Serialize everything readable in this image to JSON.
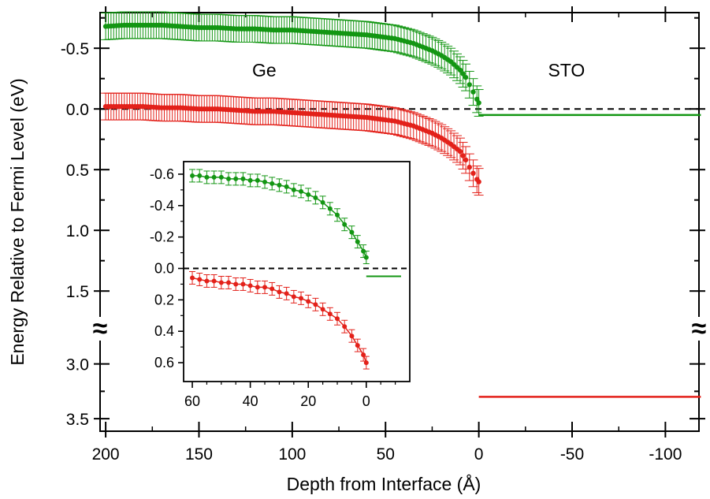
{
  "chart_data": [
    {
      "id": "main",
      "type": "scatter",
      "xlabel": "Depth from Interface (Å)",
      "ylabel": "Energy Relative to Fermi Level (eV)",
      "xlim": [
        -118,
        203
      ],
      "x_reversed": true,
      "x_ticks": [
        200,
        150,
        100,
        50,
        0,
        -50,
        -100
      ],
      "x_tick_labels": [
        "200",
        "150",
        "100",
        "50",
        "0",
        "-50",
        "-100"
      ],
      "y_axis_break": true,
      "y_break_symbol": "≈",
      "y_upper_segment": {
        "range": [
          -0.8,
          1.7
        ],
        "ticks": [
          -0.5,
          0.0,
          0.5,
          1.0,
          1.5
        ],
        "tick_labels": [
          "-0.5",
          "0.0",
          "0.5",
          "1.0",
          "1.5"
        ]
      },
      "y_lower_segment": {
        "range": [
          2.7,
          3.6
        ],
        "ticks": [
          3.0,
          3.5
        ],
        "tick_labels": [
          "3.0",
          "3.5"
        ]
      },
      "y_direction": "down-is-positive",
      "region_labels": [
        {
          "text": "Ge",
          "x": 115,
          "y": -0.32
        },
        {
          "text": "STO",
          "x": -47,
          "y": -0.32
        }
      ],
      "fermi_level": {
        "y": 0.0,
        "style": "dashed"
      },
      "series": [
        {
          "color": "#139613",
          "errorbar": 0.11,
          "points": [
            [
              200,
              -0.68
            ],
            [
              190,
              -0.69
            ],
            [
              180,
              -0.69
            ],
            [
              170,
              -0.69
            ],
            [
              160,
              -0.68
            ],
            [
              150,
              -0.67
            ],
            [
              140,
              -0.67
            ],
            [
              130,
              -0.66
            ],
            [
              120,
              -0.66
            ],
            [
              110,
              -0.65
            ],
            [
              100,
              -0.65
            ],
            [
              90,
              -0.64
            ],
            [
              80,
              -0.63
            ],
            [
              70,
              -0.62
            ],
            [
              60,
              -0.61
            ],
            [
              50,
              -0.59
            ],
            [
              45,
              -0.58
            ],
            [
              40,
              -0.56
            ],
            [
              35,
              -0.54
            ],
            [
              30,
              -0.51
            ],
            [
              25,
              -0.48
            ],
            [
              20,
              -0.44
            ],
            [
              15,
              -0.39
            ],
            [
              10,
              -0.32
            ],
            [
              7,
              -0.26
            ],
            [
              5,
              -0.2
            ],
            [
              3,
              -0.14
            ],
            [
              1,
              -0.08
            ],
            [
              0,
              -0.05
            ]
          ]
        },
        {
          "color": "#e3211a",
          "errorbar": 0.11,
          "points": [
            [
              200,
              -0.02
            ],
            [
              190,
              -0.02
            ],
            [
              180,
              -0.02
            ],
            [
              170,
              -0.01
            ],
            [
              160,
              -0.01
            ],
            [
              150,
              0.0
            ],
            [
              140,
              0.0
            ],
            [
              130,
              0.01
            ],
            [
              120,
              0.02
            ],
            [
              110,
              0.02
            ],
            [
              100,
              0.03
            ],
            [
              90,
              0.04
            ],
            [
              80,
              0.05
            ],
            [
              70,
              0.06
            ],
            [
              60,
              0.07
            ],
            [
              50,
              0.09
            ],
            [
              45,
              0.1
            ],
            [
              40,
              0.12
            ],
            [
              35,
              0.14
            ],
            [
              30,
              0.17
            ],
            [
              25,
              0.2
            ],
            [
              20,
              0.24
            ],
            [
              15,
              0.29
            ],
            [
              10,
              0.35
            ],
            [
              7,
              0.42
            ],
            [
              5,
              0.48
            ],
            [
              3,
              0.53
            ],
            [
              1,
              0.58
            ],
            [
              0,
              0.6
            ]
          ]
        },
        {
          "color": "#139613",
          "type": "line",
          "x": [
            0,
            -119
          ],
          "y": [
            0.05,
            0.05
          ]
        },
        {
          "color": "#e3211a",
          "type": "line",
          "x": [
            0,
            -119
          ],
          "y": [
            3.3,
            3.3
          ]
        }
      ]
    },
    {
      "id": "inset",
      "type": "scatter",
      "xlim": [
        -15,
        63
      ],
      "x_reversed": true,
      "x_ticks": [
        60,
        40,
        20,
        0
      ],
      "x_tick_labels": [
        "60",
        "40",
        "20",
        "0"
      ],
      "ylim": [
        -0.68,
        0.72
      ],
      "y_direction": "down-is-positive",
      "y_ticks": [
        -0.6,
        -0.4,
        -0.2,
        0.0,
        0.2,
        0.4,
        0.6
      ],
      "y_tick_labels": [
        "-0.6",
        "-0.4",
        "-0.2",
        "0.0",
        "0.2",
        "0.4",
        "0.6"
      ],
      "fermi_level": {
        "y": 0.0,
        "style": "dashed"
      },
      "series": [
        {
          "color": "#139613",
          "errorbar": 0.04,
          "points": [
            [
              60,
              -0.59
            ],
            [
              57.5,
              -0.59
            ],
            [
              55,
              -0.58
            ],
            [
              52.5,
              -0.58
            ],
            [
              50,
              -0.58
            ],
            [
              47.5,
              -0.57
            ],
            [
              45,
              -0.57
            ],
            [
              42.5,
              -0.57
            ],
            [
              40,
              -0.56
            ],
            [
              37.5,
              -0.56
            ],
            [
              35,
              -0.55
            ],
            [
              32.5,
              -0.54
            ],
            [
              30,
              -0.53
            ],
            [
              27.5,
              -0.52
            ],
            [
              25,
              -0.5
            ],
            [
              22.5,
              -0.49
            ],
            [
              20,
              -0.47
            ],
            [
              17.5,
              -0.45
            ],
            [
              15,
              -0.42
            ],
            [
              12.5,
              -0.38
            ],
            [
              10,
              -0.34
            ],
            [
              7.5,
              -0.28
            ],
            [
              5,
              -0.23
            ],
            [
              3,
              -0.17
            ],
            [
              1,
              -0.11
            ],
            [
              0,
              -0.07
            ]
          ]
        },
        {
          "color": "#e3211a",
          "errorbar": 0.04,
          "points": [
            [
              60,
              0.06
            ],
            [
              57.5,
              0.07
            ],
            [
              55,
              0.08
            ],
            [
              52.5,
              0.08
            ],
            [
              50,
              0.09
            ],
            [
              47.5,
              0.09
            ],
            [
              45,
              0.1
            ],
            [
              42.5,
              0.1
            ],
            [
              40,
              0.11
            ],
            [
              37.5,
              0.12
            ],
            [
              35,
              0.12
            ],
            [
              32.5,
              0.13
            ],
            [
              30,
              0.15
            ],
            [
              27.5,
              0.16
            ],
            [
              25,
              0.18
            ],
            [
              22.5,
              0.19
            ],
            [
              20,
              0.21
            ],
            [
              17.5,
              0.23
            ],
            [
              15,
              0.26
            ],
            [
              12.5,
              0.29
            ],
            [
              10,
              0.32
            ],
            [
              7.5,
              0.37
            ],
            [
              5,
              0.43
            ],
            [
              3,
              0.49
            ],
            [
              1,
              0.55
            ],
            [
              0,
              0.6
            ]
          ]
        },
        {
          "color": "#139613",
          "type": "line",
          "x": [
            0,
            -12
          ],
          "y": [
            0.05,
            0.05
          ]
        }
      ]
    }
  ]
}
